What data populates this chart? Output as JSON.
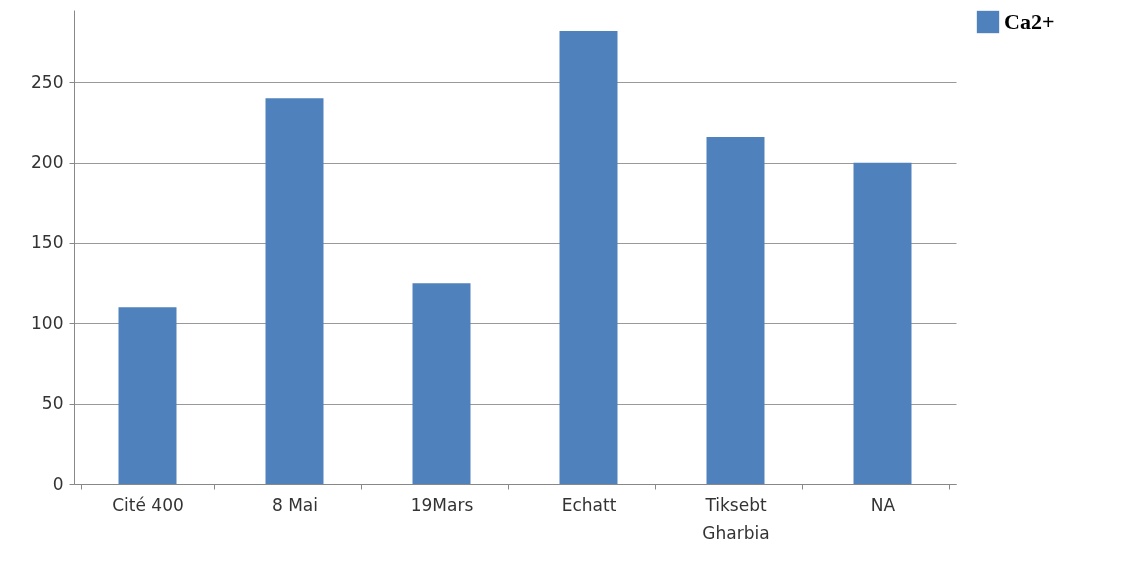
{
  "chart_data": {
    "type": "bar",
    "categories": [
      "Cité 400",
      "8 Mai",
      "19Mars",
      "Echatt",
      "Tiksebt Gharbia",
      "NA"
    ],
    "series": [
      {
        "name": "Ca2+",
        "color": "#4f81bd",
        "values": [
          110,
          240,
          125,
          282,
          216,
          200
        ]
      }
    ],
    "ylim": [
      0,
      295
    ],
    "yticks": [
      0,
      50,
      100,
      150,
      200,
      250
    ],
    "grid": "y",
    "legend": "right"
  }
}
